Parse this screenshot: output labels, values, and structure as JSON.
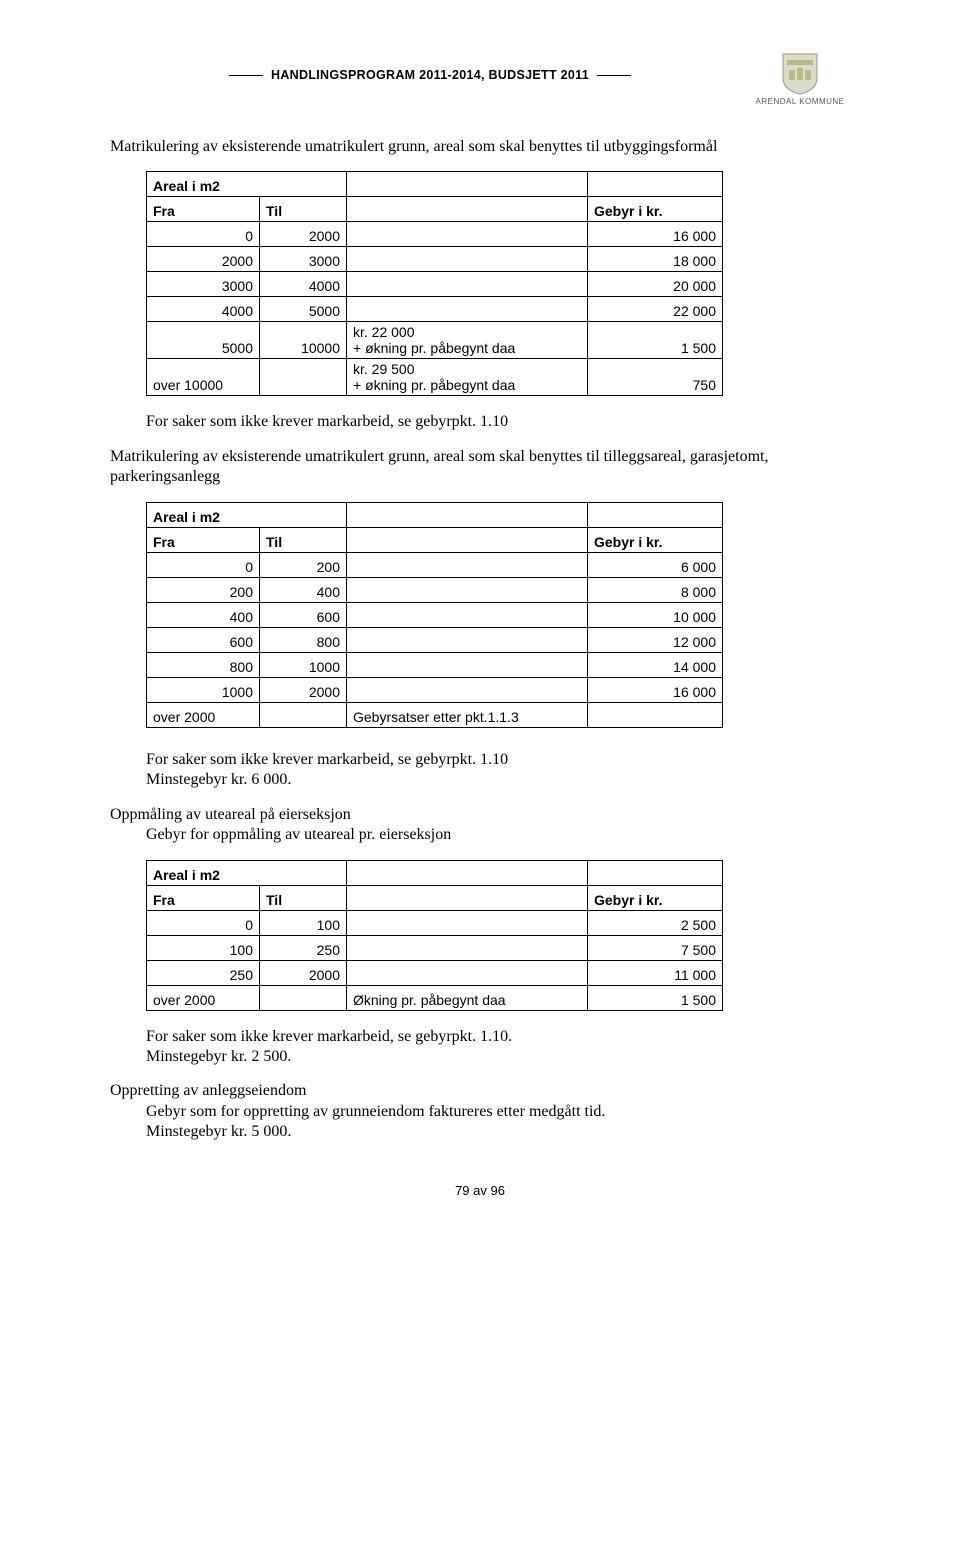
{
  "header": {
    "title": "HANDLINGSPROGRAM 2011-2014, BUDSJETT 2011",
    "org": "ARENDAL KOMMUNE"
  },
  "p1": "Matrikulering av eksisterende umatrikulert grunn, areal som skal benyttes til utbyggingsformål",
  "table1": {
    "h1": "Areal i m2",
    "c1": "Fra",
    "c2": "Til",
    "c4": "Gebyr i kr.",
    "rows": [
      {
        "fra": "0",
        "til": "2000",
        "mid": "",
        "fee": "16 000"
      },
      {
        "fra": "2000",
        "til": "3000",
        "mid": "",
        "fee": "18 000"
      },
      {
        "fra": "3000",
        "til": "4000",
        "mid": "",
        "fee": "20 000"
      },
      {
        "fra": "4000",
        "til": "5000",
        "mid": "",
        "fee": "22 000"
      },
      {
        "fra": "5000",
        "til": "10000",
        "mid": "kr. 22 000\n+ økning pr. påbegynt daa",
        "fee": "1 500"
      },
      {
        "fra": "over 10000",
        "til": "",
        "mid": "kr. 29 500\n+ økning pr. påbegynt daa",
        "fee": "750"
      }
    ]
  },
  "p2": "For saker som ikke krever markarbeid, se gebyrpkt. 1.10",
  "p3": "Matrikulering av eksisterende umatrikulert grunn, areal som skal benyttes til tilleggsareal, garasjetomt, parkeringsanlegg",
  "table2": {
    "h1": "Areal i m2",
    "c1": "Fra",
    "c2": "Til",
    "c4": "Gebyr i kr.",
    "rows": [
      {
        "fra": "0",
        "til": "200",
        "mid": "",
        "fee": "6 000"
      },
      {
        "fra": "200",
        "til": "400",
        "mid": "",
        "fee": "8 000"
      },
      {
        "fra": "400",
        "til": "600",
        "mid": "",
        "fee": "10 000"
      },
      {
        "fra": "600",
        "til": "800",
        "mid": "",
        "fee": "12 000"
      },
      {
        "fra": "800",
        "til": "1000",
        "mid": "",
        "fee": "14 000"
      },
      {
        "fra": "1000",
        "til": "2000",
        "mid": "",
        "fee": "16 000"
      },
      {
        "fra": "over 2000",
        "til": "",
        "mid": "Gebyrsatser etter pkt.1.1.3",
        "fee": ""
      }
    ]
  },
  "p4a": "For saker som ikke krever markarbeid, se gebyrpkt. 1.10",
  "p4b": "Minstegebyr kr. 6 000.",
  "p5a": "Oppmåling av uteareal på eierseksjon",
  "p5b": "Gebyr for oppmåling av uteareal pr. eierseksjon",
  "table3": {
    "h1": "Areal i m2",
    "c1": "Fra",
    "c2": "Til",
    "c4": "Gebyr i kr.",
    "rows": [
      {
        "fra": "0",
        "til": "100",
        "mid": "",
        "fee": "2 500"
      },
      {
        "fra": "100",
        "til": "250",
        "mid": "",
        "fee": "7 500"
      },
      {
        "fra": "250",
        "til": "2000",
        "mid": "",
        "fee": "11 000"
      },
      {
        "fra": "over 2000",
        "til": "",
        "mid": "Økning pr. påbegynt daa",
        "fee": "1 500"
      }
    ]
  },
  "p6a": "For saker som ikke krever markarbeid, se gebyrpkt. 1.10.",
  "p6b": "Minstegebyr kr. 2 500.",
  "p7a": "Oppretting av anleggseiendom",
  "p7b": "Gebyr som for oppretting av grunneiendom faktureres etter medgått tid.",
  "p7c": "Minstegebyr kr. 5 000.",
  "footer": "79 av 96"
}
